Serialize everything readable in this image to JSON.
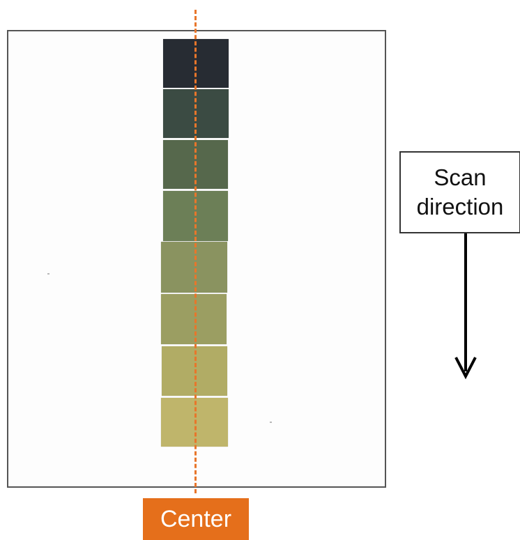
{
  "center_label": "Center",
  "scan_direction": {
    "line1": "Scan",
    "line2": "direction"
  },
  "colors": {
    "center_marker": "#e56f1b",
    "swatches": [
      "#272c33",
      "#3b4b43",
      "#56684c",
      "#6c7f57",
      "#8a9360",
      "#9b9e62",
      "#b1ac65",
      "#bfb56b"
    ]
  }
}
